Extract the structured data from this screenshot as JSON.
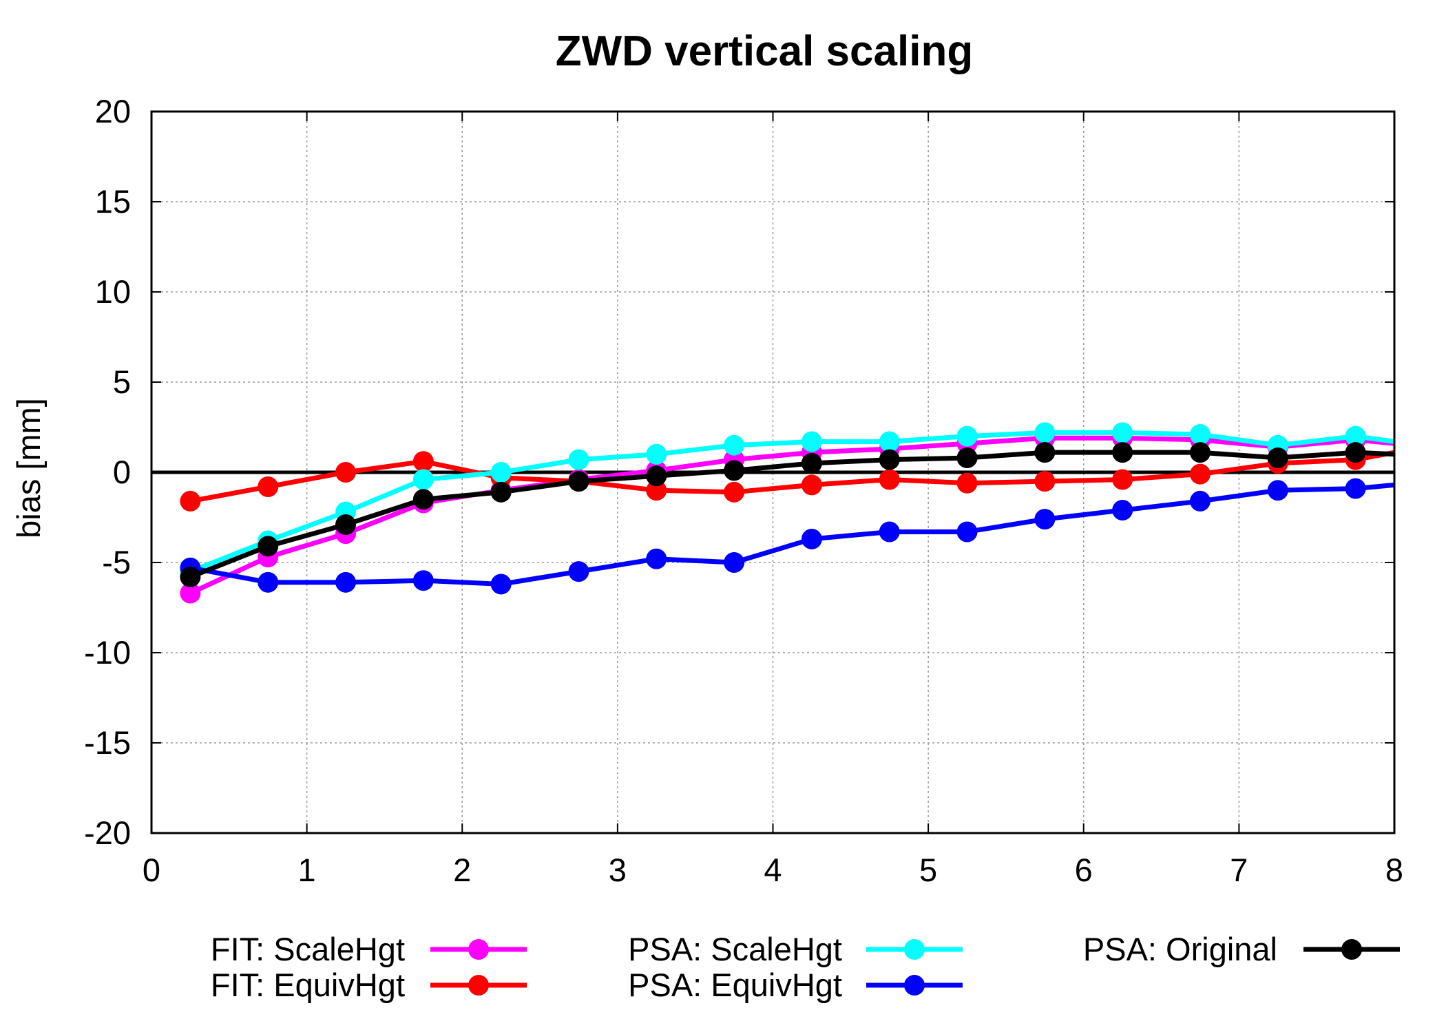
{
  "chart_data": {
    "type": "line",
    "title": "ZWD vertical scaling",
    "xlabel": "",
    "ylabel": "bias [mm]",
    "xlim": [
      0,
      8
    ],
    "ylim": [
      -20,
      20
    ],
    "xticks": [
      0,
      1,
      2,
      3,
      4,
      5,
      6,
      7,
      8
    ],
    "yticks": [
      -20,
      -15,
      -10,
      -5,
      0,
      5,
      10,
      15,
      20
    ],
    "grid": true,
    "zero_line": true,
    "legend_position": "bottom",
    "x": [
      0.25,
      0.75,
      1.25,
      1.75,
      2.25,
      2.75,
      3.25,
      3.75,
      4.25,
      4.75,
      5.25,
      5.75,
      6.25,
      6.75,
      7.25,
      7.75,
      8.0
    ],
    "series": [
      {
        "name": "FIT: ScaleHgt",
        "color": "#ff00ff",
        "values": [
          -6.7,
          -4.7,
          -3.4,
          -1.7,
          -1.0,
          -0.4,
          0.1,
          0.7,
          1.1,
          1.3,
          1.6,
          1.9,
          1.9,
          1.8,
          1.4,
          1.8,
          1.6
        ]
      },
      {
        "name": "FIT: EquivHgt",
        "color": "#ff0000",
        "values": [
          -1.6,
          -0.8,
          0.0,
          0.6,
          -0.3,
          -0.5,
          -1.0,
          -1.1,
          -0.7,
          -0.4,
          -0.6,
          -0.5,
          -0.4,
          -0.1,
          0.5,
          0.7,
          1.1
        ]
      },
      {
        "name": "PSA: ScaleHgt",
        "color": "#00ffff",
        "values": [
          -5.5,
          -3.8,
          -2.2,
          -0.4,
          0.0,
          0.7,
          1.0,
          1.5,
          1.7,
          1.7,
          2.0,
          2.2,
          2.2,
          2.1,
          1.5,
          2.0,
          1.7
        ]
      },
      {
        "name": "PSA: EquivHgt",
        "color": "#0000ff",
        "values": [
          -5.3,
          -6.1,
          -6.1,
          -6.0,
          -6.2,
          -5.5,
          -4.8,
          -5.0,
          -3.7,
          -3.3,
          -3.3,
          -2.6,
          -2.1,
          -1.6,
          -1.0,
          -0.9,
          -0.7
        ]
      },
      {
        "name": "PSA: Original",
        "color": "#000000",
        "values": [
          -5.8,
          -4.1,
          -2.9,
          -1.5,
          -1.1,
          -0.5,
          -0.2,
          0.1,
          0.5,
          0.7,
          0.8,
          1.1,
          1.1,
          1.1,
          0.8,
          1.1,
          1.0
        ]
      }
    ]
  }
}
